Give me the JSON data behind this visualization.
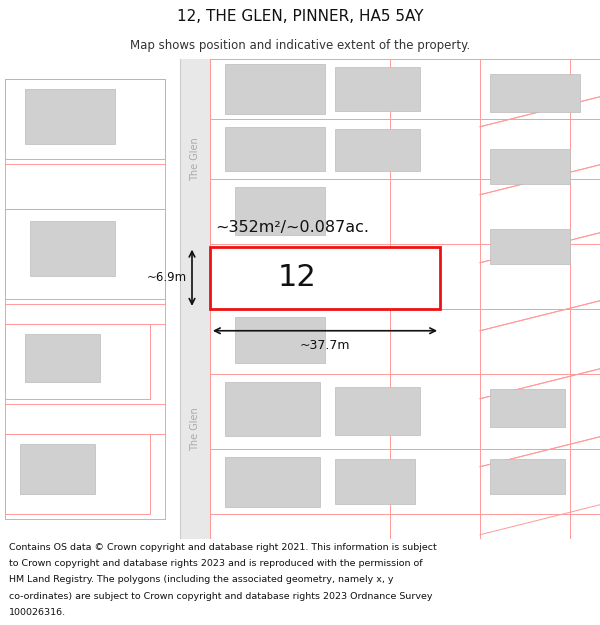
{
  "title": "12, THE GLEN, PINNER, HA5 5AY",
  "subtitle": "Map shows position and indicative extent of the property.",
  "footer": "Contains OS data © Crown copyright and database right 2021. This information is subject to Crown copyright and database rights 2023 and is reproduced with the permission of HM Land Registry. The polygons (including the associated geometry, namely x, y co-ordinates) are subject to Crown copyright and database rights 2023 Ordnance Survey 100026316.",
  "area_text": "~352m²/~0.087ac.",
  "width_text": "~37.7m",
  "height_text": "~6.9m",
  "number_text": "12",
  "street_name": "The Glen",
  "map_bg": "#ffffff",
  "road_fill": "#e8e8e8",
  "plot_line_color": "#ff9999",
  "plot_highlight_color": "#ee1111",
  "building_fill": "#d0d0d0",
  "building_edge": "#bbbbbb"
}
